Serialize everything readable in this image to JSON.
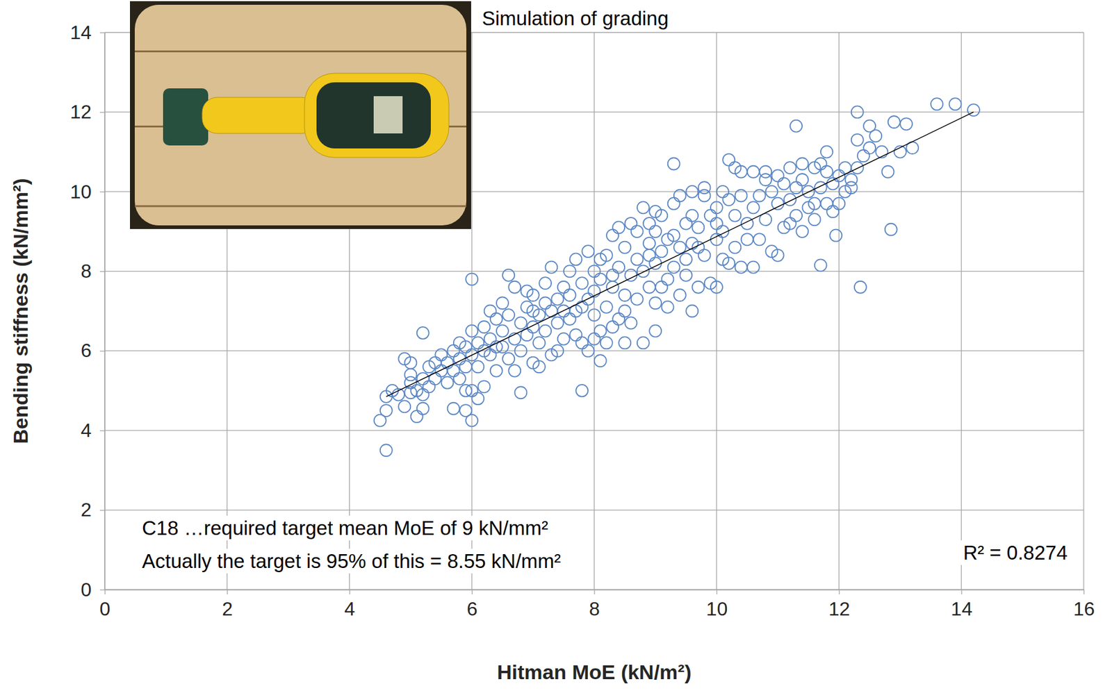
{
  "chart_data": {
    "type": "scatter",
    "title": "Simulation of grading",
    "x_label": "Hitman MoE (kN/m²)",
    "y_label": "Bending stiffness (kN/mm²)",
    "xlim": [
      0,
      16
    ],
    "ylim": [
      0,
      14
    ],
    "xticks": [
      0,
      2,
      4,
      6,
      8,
      10,
      12,
      14,
      16
    ],
    "yticks": [
      0,
      2,
      4,
      6,
      8,
      10,
      12,
      14
    ],
    "grid": true,
    "annotations": [
      {
        "text": "C18  …required target mean MoE of 9 kN/mm²"
      },
      {
        "text": "Actually the target is 95% of this = 8.55 kN/mm²"
      },
      {
        "text": "R² = 0.8274"
      }
    ],
    "series": [
      {
        "type": "scatter",
        "marker": "circle",
        "color": "#5b87c5",
        "x": [
          4.6,
          4.7,
          4.8,
          5.0,
          5.0,
          5.1,
          5.2,
          5.3,
          5.3,
          5.4,
          5.5,
          5.5,
          5.2,
          5.4,
          5.0,
          5.6,
          5.6,
          5.7,
          5.7,
          5.8,
          5.8,
          5.9,
          5.9,
          6.0,
          6.0,
          6.1,
          6.1,
          6.2,
          6.2,
          6.3,
          6.3,
          6.4,
          6.4,
          6.5,
          6.5,
          5.8,
          6.0,
          6.1,
          6.2,
          6.3,
          6.4,
          6.5,
          5.9,
          6.6,
          6.6,
          6.7,
          6.7,
          6.8,
          6.8,
          6.9,
          6.9,
          7.0,
          7.0,
          7.0,
          7.1,
          7.1,
          7.2,
          7.2,
          7.3,
          7.3,
          7.4,
          7.4,
          7.5,
          7.5,
          6.6,
          6.7,
          6.9,
          7.1,
          7.2,
          7.3,
          7.4,
          7.5,
          7.0,
          7.6,
          7.6,
          7.7,
          7.7,
          7.8,
          7.8,
          7.9,
          7.9,
          8.0,
          8.0,
          8.0,
          8.1,
          8.1,
          8.2,
          8.2,
          8.3,
          8.3,
          8.4,
          8.4,
          8.5,
          8.5,
          7.6,
          7.8,
          7.9,
          8.0,
          8.2,
          8.3,
          8.4,
          8.5,
          8.1,
          7.7,
          8.3,
          8.6,
          8.6,
          8.7,
          8.7,
          8.8,
          8.8,
          8.9,
          8.9,
          9.0,
          9.0,
          9.0,
          9.1,
          9.1,
          9.2,
          9.2,
          9.3,
          9.3,
          9.4,
          9.4,
          9.5,
          9.5,
          8.6,
          8.7,
          8.8,
          8.9,
          9.0,
          9.2,
          9.3,
          9.4,
          9.5,
          9.1,
          8.9,
          9.6,
          9.6,
          9.7,
          9.7,
          9.8,
          9.8,
          9.9,
          9.9,
          10.0,
          10.0,
          10.0,
          10.1,
          10.1,
          10.2,
          10.2,
          10.3,
          10.3,
          10.3,
          10.4,
          10.4,
          10.5,
          10.5,
          9.6,
          9.8,
          10.1,
          10.2,
          10.4,
          9.7,
          10.0,
          10.6,
          10.6,
          10.7,
          10.7,
          10.8,
          10.8,
          10.9,
          10.9,
          11.0,
          11.0,
          11.1,
          11.1,
          11.2,
          11.2,
          11.3,
          11.3,
          11.4,
          11.4,
          11.5,
          11.5,
          10.6,
          10.8,
          11.0,
          11.2,
          11.4,
          11.6,
          11.6,
          11.7,
          11.7,
          11.8,
          11.8,
          11.9,
          11.9,
          12.0,
          12.0,
          12.1,
          12.1,
          12.2,
          12.3,
          12.4,
          12.5,
          11.6,
          11.8,
          12.2,
          4.6,
          4.5,
          4.6,
          6.0,
          5.2,
          6.8,
          7.8,
          9.3,
          11.3,
          12.3,
          13.6,
          13.9,
          14.2,
          12.85,
          12.35,
          11.7,
          11.95,
          9.6,
          9.0,
          8.1,
          8.5,
          6.0,
          5.9,
          5.7,
          5.2,
          5.1,
          4.9,
          5.0,
          4.9,
          12.9,
          13.1,
          13.0,
          13.2,
          12.8,
          12.5,
          12.3,
          12.6,
          12.7
        ],
        "values": [
          4.85,
          5.0,
          4.9,
          5.2,
          5.4,
          5.0,
          5.3,
          5.1,
          5.6,
          5.3,
          5.5,
          5.9,
          4.9,
          5.7,
          4.95,
          5.2,
          5.7,
          5.5,
          6.0,
          5.3,
          5.8,
          6.1,
          5.0,
          5.9,
          6.5,
          5.6,
          6.2,
          5.1,
          6.6,
          5.9,
          6.3,
          5.5,
          6.8,
          6.1,
          6.5,
          6.2,
          5.0,
          4.8,
          6.0,
          7.0,
          6.1,
          7.2,
          5.6,
          5.8,
          6.9,
          6.3,
          7.6,
          6.0,
          6.7,
          7.1,
          6.4,
          5.7,
          6.6,
          7.4,
          6.2,
          6.9,
          7.7,
          6.5,
          5.9,
          7.0,
          6.7,
          7.3,
          6.3,
          7.6,
          7.9,
          5.5,
          7.5,
          5.6,
          7.2,
          8.1,
          6.0,
          7.0,
          7.0,
          6.8,
          7.4,
          8.3,
          6.4,
          7.1,
          7.7,
          6.0,
          7.3,
          8.0,
          6.9,
          7.5,
          7.8,
          6.5,
          8.4,
          7.1,
          7.6,
          8.9,
          6.8,
          8.1,
          7.4,
          8.6,
          8.0,
          6.2,
          8.5,
          6.3,
          6.2,
          6.6,
          9.1,
          7.0,
          8.3,
          7.0,
          7.9,
          7.9,
          9.2,
          7.3,
          8.3,
          9.6,
          8.0,
          7.6,
          8.7,
          9.0,
          8.2,
          7.2,
          8.5,
          9.4,
          7.8,
          8.8,
          9.7,
          8.1,
          7.4,
          8.6,
          9.2,
          8.3,
          6.7,
          9.0,
          6.2,
          9.2,
          9.5,
          7.1,
          8.9,
          9.9,
          7.9,
          7.6,
          8.4,
          8.7,
          10.0,
          7.6,
          9.1,
          9.9,
          8.4,
          9.4,
          7.7,
          8.8,
          9.6,
          7.6,
          9.0,
          8.3,
          9.8,
          10.8,
          8.6,
          9.4,
          10.6,
          8.1,
          9.9,
          9.2,
          8.8,
          9.4,
          10.1,
          10.0,
          8.2,
          10.5,
          8.6,
          9.2,
          9.6,
          10.5,
          8.8,
          9.9,
          10.3,
          9.3,
          10.0,
          8.5,
          9.7,
          10.4,
          9.1,
          10.2,
          9.8,
          10.6,
          9.4,
          10.1,
          10.7,
          9.0,
          10.0,
          9.6,
          8.1,
          10.5,
          8.4,
          9.2,
          10.3,
          10.6,
          9.3,
          10.1,
          10.7,
          9.7,
          11.0,
          10.2,
          9.5,
          10.4,
          9.7,
          10.0,
          10.6,
          10.3,
          10.6,
          10.9,
          11.1,
          9.7,
          10.5,
          10.1,
          3.5,
          4.25,
          4.5,
          7.8,
          6.45,
          4.95,
          5.0,
          10.7,
          11.65,
          12.0,
          12.2,
          12.2,
          12.05,
          9.05,
          7.6,
          8.15,
          8.9,
          7.0,
          6.5,
          5.75,
          6.2,
          4.25,
          4.5,
          4.55,
          4.55,
          4.35,
          4.6,
          5.7,
          5.8,
          11.75,
          11.7,
          11.0,
          11.1,
          10.5,
          11.65,
          11.3,
          11.4,
          11.0
        ]
      },
      {
        "type": "line",
        "line_style": "solid",
        "color": "#000000",
        "x": [
          4.6,
          14.2
        ],
        "values": [
          4.85,
          12.0
        ]
      }
    ]
  }
}
